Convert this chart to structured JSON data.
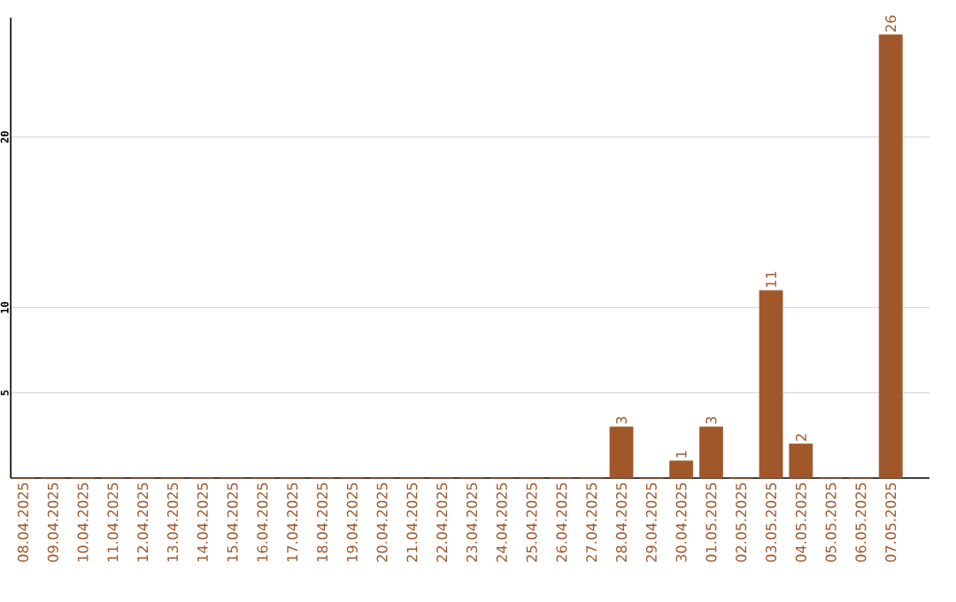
{
  "chart_data": {
    "type": "bar",
    "categories": [
      "08.04.2025",
      "09.04.2025",
      "10.04.2025",
      "11.04.2025",
      "12.04.2025",
      "13.04.2025",
      "14.04.2025",
      "15.04.2025",
      "16.04.2025",
      "17.04.2025",
      "18.04.2025",
      "19.04.2025",
      "20.04.2025",
      "21.04.2025",
      "22.04.2025",
      "23.04.2025",
      "24.04.2025",
      "25.04.2025",
      "26.04.2025",
      "27.04.2025",
      "28.04.2025",
      "29.04.2025",
      "30.04.2025",
      "01.05.2025",
      "02.05.2025",
      "03.05.2025",
      "04.05.2025",
      "05.05.2025",
      "06.05.2025",
      "07.05.2025"
    ],
    "values": [
      0,
      0,
      0,
      0,
      0,
      0,
      0,
      0,
      0,
      0,
      0,
      0,
      0,
      0,
      0,
      0,
      0,
      0,
      0,
      0,
      3,
      0,
      1,
      3,
      0,
      11,
      2,
      0,
      0,
      26
    ],
    "value_labels": [
      null,
      null,
      null,
      null,
      null,
      null,
      null,
      null,
      null,
      null,
      null,
      null,
      null,
      null,
      null,
      null,
      null,
      null,
      null,
      null,
      "3",
      null,
      "1",
      "3",
      null,
      "11",
      "2",
      null,
      null,
      "26"
    ],
    "color": "#a0572a",
    "ylim": [
      0,
      27
    ],
    "yticks": [
      5,
      10,
      20
    ],
    "grid": "y"
  }
}
